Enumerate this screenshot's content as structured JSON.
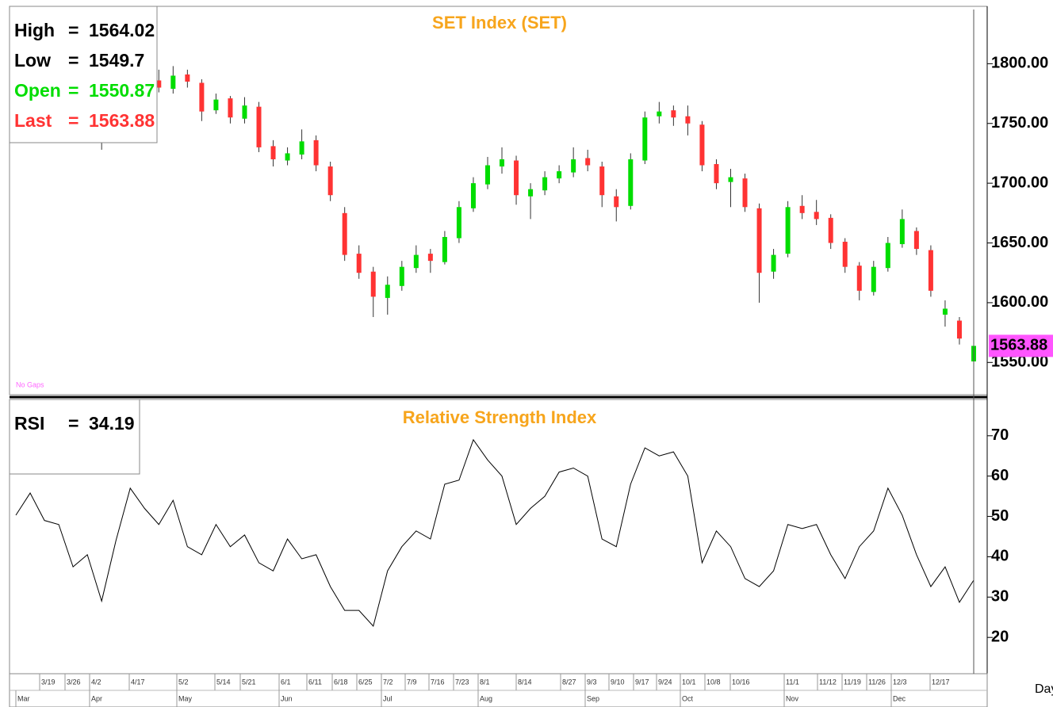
{
  "chart_data": {
    "type": "candlestick",
    "title": "SET Index (SET)",
    "ohlc_labels": [
      "High",
      "Low",
      "Open",
      "Last"
    ],
    "separator": "=",
    "note": "No Gaps",
    "x_unit": "Day",
    "up_color": "#00dd00",
    "down_color": "#ff3333",
    "ylim": [
      1523,
      1848
    ],
    "yticks": [
      {
        "value": 1550,
        "label": "1550.00"
      },
      {
        "value": 1600,
        "label": "1600.00"
      },
      {
        "value": 1650,
        "label": "1650.00"
      },
      {
        "value": 1700,
        "label": "1700.00"
      },
      {
        "value": 1750,
        "label": "1750.00"
      },
      {
        "value": 1800,
        "label": "1800.00"
      }
    ],
    "date_labels": [
      "3/19",
      "3/26",
      "4/2",
      "4/17",
      "5/2",
      "5/14",
      "5/21",
      "6/1",
      "6/11",
      "6/18",
      "6/25",
      "7/2",
      "7/9",
      "7/16",
      "7/23",
      "8/1",
      "8/14",
      "8/27",
      "9/3",
      "9/10",
      "9/17",
      "9/24",
      "10/1",
      "10/8",
      "10/16",
      "11/1",
      "11/12",
      "11/19",
      "11/26",
      "12/3",
      "12/17"
    ],
    "month_labels": [
      "Mar",
      "Apr",
      "May",
      "Jun",
      "Jul",
      "Aug",
      "Sep",
      "Oct",
      "Nov",
      "Dec"
    ],
    "candles": [
      {
        "open": 1750,
        "high": 1768,
        "low": 1745,
        "close": 1760
      },
      {
        "open": 1762,
        "high": 1766,
        "low": 1748,
        "close": 1755
      },
      {
        "open": 1754,
        "high": 1770,
        "low": 1750,
        "close": 1765
      },
      {
        "open": 1764,
        "high": 1776,
        "low": 1760,
        "close": 1770
      },
      {
        "open": 1771,
        "high": 1774,
        "low": 1755,
        "close": 1760
      },
      {
        "open": 1761,
        "high": 1764,
        "low": 1744,
        "close": 1750
      },
      {
        "open": 1752,
        "high": 1755,
        "low": 1728,
        "close": 1740
      },
      {
        "open": 1741,
        "high": 1768,
        "low": 1738,
        "close": 1765
      },
      {
        "open": 1764,
        "high": 1780,
        "low": 1760,
        "close": 1775
      },
      {
        "open": 1774,
        "high": 1790,
        "low": 1770,
        "close": 1785
      },
      {
        "open": 1786,
        "high": 1795,
        "low": 1776,
        "close": 1780
      },
      {
        "open": 1779,
        "high": 1798,
        "low": 1775,
        "close": 1790
      },
      {
        "open": 1791,
        "high": 1795,
        "low": 1780,
        "close": 1785
      },
      {
        "open": 1784,
        "high": 1787,
        "low": 1752,
        "close": 1760
      },
      {
        "open": 1761,
        "high": 1775,
        "low": 1758,
        "close": 1770
      },
      {
        "open": 1771,
        "high": 1773,
        "low": 1750,
        "close": 1755
      },
      {
        "open": 1754,
        "high": 1772,
        "low": 1750,
        "close": 1765
      },
      {
        "open": 1764,
        "high": 1768,
        "low": 1726,
        "close": 1730
      },
      {
        "open": 1731,
        "high": 1736,
        "low": 1714,
        "close": 1720
      },
      {
        "open": 1719,
        "high": 1730,
        "low": 1715,
        "close": 1725
      },
      {
        "open": 1724,
        "high": 1745,
        "low": 1720,
        "close": 1735
      },
      {
        "open": 1736,
        "high": 1740,
        "low": 1710,
        "close": 1715
      },
      {
        "open": 1714,
        "high": 1718,
        "low": 1685,
        "close": 1690
      },
      {
        "open": 1675,
        "high": 1680,
        "low": 1635,
        "close": 1640
      },
      {
        "open": 1641,
        "high": 1648,
        "low": 1620,
        "close": 1625
      },
      {
        "open": 1626,
        "high": 1630,
        "low": 1588,
        "close": 1605
      },
      {
        "open": 1604,
        "high": 1622,
        "low": 1590,
        "close": 1615
      },
      {
        "open": 1614,
        "high": 1635,
        "low": 1610,
        "close": 1630
      },
      {
        "open": 1629,
        "high": 1648,
        "low": 1625,
        "close": 1640
      },
      {
        "open": 1641,
        "high": 1645,
        "low": 1625,
        "close": 1635
      },
      {
        "open": 1634,
        "high": 1660,
        "low": 1632,
        "close": 1655
      },
      {
        "open": 1654,
        "high": 1685,
        "low": 1650,
        "close": 1680
      },
      {
        "open": 1679,
        "high": 1705,
        "low": 1676,
        "close": 1700
      },
      {
        "open": 1699,
        "high": 1722,
        "low": 1695,
        "close": 1715
      },
      {
        "open": 1714,
        "high": 1730,
        "low": 1708,
        "close": 1720
      },
      {
        "open": 1719,
        "high": 1723,
        "low": 1682,
        "close": 1690
      },
      {
        "open": 1689,
        "high": 1700,
        "low": 1670,
        "close": 1695
      },
      {
        "open": 1694,
        "high": 1710,
        "low": 1690,
        "close": 1705
      },
      {
        "open": 1704,
        "high": 1715,
        "low": 1700,
        "close": 1710
      },
      {
        "open": 1709,
        "high": 1730,
        "low": 1705,
        "close": 1720
      },
      {
        "open": 1721,
        "high": 1728,
        "low": 1710,
        "close": 1715
      },
      {
        "open": 1714,
        "high": 1718,
        "low": 1680,
        "close": 1690
      },
      {
        "open": 1689,
        "high": 1695,
        "low": 1668,
        "close": 1680
      },
      {
        "open": 1681,
        "high": 1725,
        "low": 1678,
        "close": 1720
      },
      {
        "open": 1719,
        "high": 1760,
        "low": 1716,
        "close": 1755
      },
      {
        "open": 1756,
        "high": 1768,
        "low": 1750,
        "close": 1760
      },
      {
        "open": 1761,
        "high": 1765,
        "low": 1748,
        "close": 1755
      },
      {
        "open": 1756,
        "high": 1765,
        "low": 1740,
        "close": 1750
      },
      {
        "open": 1749,
        "high": 1752,
        "low": 1710,
        "close": 1715
      },
      {
        "open": 1716,
        "high": 1720,
        "low": 1695,
        "close": 1700
      },
      {
        "open": 1701,
        "high": 1712,
        "low": 1680,
        "close": 1705
      },
      {
        "open": 1704,
        "high": 1708,
        "low": 1676,
        "close": 1680
      },
      {
        "open": 1679,
        "high": 1683,
        "low": 1600,
        "close": 1625
      },
      {
        "open": 1626,
        "high": 1645,
        "low": 1620,
        "close": 1640
      },
      {
        "open": 1641,
        "high": 1685,
        "low": 1638,
        "close": 1680
      },
      {
        "open": 1681,
        "high": 1690,
        "low": 1670,
        "close": 1675
      },
      {
        "open": 1676,
        "high": 1686,
        "low": 1665,
        "close": 1670
      },
      {
        "open": 1671,
        "high": 1674,
        "low": 1645,
        "close": 1650
      },
      {
        "open": 1651,
        "high": 1654,
        "low": 1625,
        "close": 1630
      },
      {
        "open": 1631,
        "high": 1634,
        "low": 1602,
        "close": 1610
      },
      {
        "open": 1609,
        "high": 1635,
        "low": 1606,
        "close": 1630
      },
      {
        "open": 1629,
        "high": 1655,
        "low": 1626,
        "close": 1650
      },
      {
        "open": 1649,
        "high": 1678,
        "low": 1646,
        "close": 1670
      },
      {
        "open": 1660,
        "high": 1663,
        "low": 1640,
        "close": 1645
      },
      {
        "open": 1644,
        "high": 1648,
        "low": 1605,
        "close": 1610
      },
      {
        "open": 1590,
        "high": 1602,
        "low": 1580,
        "close": 1595
      },
      {
        "open": 1585,
        "high": 1588,
        "low": 1565,
        "close": 1570
      },
      {
        "open": 1550.87,
        "high": 1564.02,
        "low": 1549.7,
        "close": 1563.88
      }
    ],
    "rsi": {
      "title": "Relative Strength Index",
      "name": "RSI",
      "color": "#000000",
      "ylim": [
        11,
        79
      ],
      "yticks": [
        20,
        30,
        40,
        50,
        60,
        70
      ],
      "values": [
        50.3,
        55.8,
        49,
        48,
        37.5,
        40.5,
        29,
        44,
        57,
        52,
        48,
        54,
        42.5,
        40.5,
        48,
        42.5,
        45.4,
        38.5,
        36.5,
        44.4,
        39.5,
        40.5,
        32.6,
        26.7,
        26.7,
        22.8,
        36.5,
        42.5,
        46.4,
        44.4,
        58,
        59,
        69,
        64,
        60,
        48,
        52,
        55,
        61,
        62,
        60,
        44.4,
        42.5,
        58,
        67,
        65,
        66,
        60,
        38.5,
        46.4,
        42.5,
        34.6,
        32.6,
        36.5,
        48,
        47,
        48,
        40.5,
        34.6,
        42.5,
        46.4,
        57,
        50.3,
        40.5,
        32.6,
        37.5,
        28.7,
        34.19
      ]
    }
  }
}
